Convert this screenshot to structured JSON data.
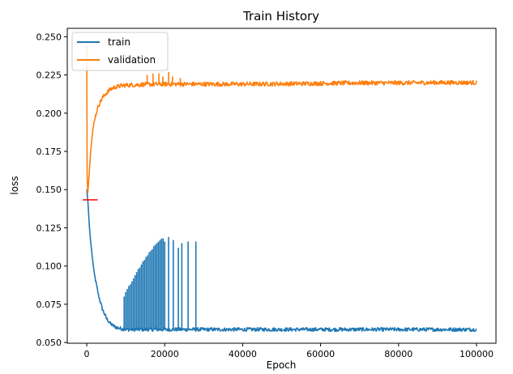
{
  "colors": {
    "train": "#1f77b4",
    "validation": "#ff7f0e",
    "marker": "#ff0000",
    "axis": "#000000",
    "background": "#ffffff"
  },
  "chart_data": {
    "type": "line",
    "title": "Train History",
    "xlabel": "Epoch",
    "ylabel": "loss",
    "xlim": [
      -5000,
      105000
    ],
    "ylim": [
      0.0495,
      0.2555
    ],
    "grid": false,
    "legend_placement": "top-left",
    "x_ticks": [
      0,
      20000,
      40000,
      60000,
      80000,
      100000
    ],
    "x_tick_labels": [
      "0",
      "20000",
      "40000",
      "60000",
      "80000",
      "100000"
    ],
    "y_ticks": [
      0.05,
      0.075,
      0.1,
      0.125,
      0.15,
      0.175,
      0.2,
      0.225,
      0.25
    ],
    "y_tick_labels": [
      "0.050",
      "0.075",
      "0.100",
      "0.125",
      "0.150",
      "0.175",
      "0.200",
      "0.225",
      "0.250"
    ],
    "series": [
      {
        "name": "train",
        "color": "#1f77b4",
        "x": [
          0,
          300,
          700,
          1000,
          1500,
          2000,
          3000,
          4000,
          5000,
          6000,
          7000,
          8000,
          9000,
          10000,
          15000,
          20000,
          30000,
          40000,
          50000,
          60000,
          70000,
          80000,
          90000,
          100000
        ],
        "values": [
          0.15,
          0.142,
          0.125,
          0.116,
          0.104,
          0.094,
          0.081,
          0.072,
          0.066,
          0.0625,
          0.0605,
          0.0595,
          0.059,
          0.0585,
          0.0585,
          0.0585,
          0.0585,
          0.0585,
          0.0585,
          0.0585,
          0.0585,
          0.0585,
          0.0585,
          0.0585
        ],
        "noise": 0.0012,
        "spikes": {
          "x": [
            9600,
            10000,
            10400,
            10800,
            11200,
            11600,
            12000,
            12400,
            12800,
            13200,
            13600,
            14000,
            14400,
            14800,
            15200,
            15600,
            16000,
            16400,
            16800,
            17200,
            17600,
            18000,
            18400,
            18800,
            19200,
            19600,
            20000,
            21000,
            22200,
            23500,
            24400,
            26000,
            28000
          ],
          "values": [
            0.08,
            0.083,
            0.085,
            0.087,
            0.088,
            0.09,
            0.092,
            0.094,
            0.096,
            0.098,
            0.099,
            0.101,
            0.103,
            0.104,
            0.106,
            0.107,
            0.109,
            0.11,
            0.111,
            0.113,
            0.114,
            0.115,
            0.116,
            0.117,
            0.118,
            0.118,
            0.116,
            0.119,
            0.117,
            0.112,
            0.115,
            0.116,
            0.116
          ]
        }
      },
      {
        "name": "validation",
        "color": "#ff7f0e",
        "x": [
          0,
          100,
          250,
          400,
          700,
          1000,
          1500,
          2000,
          3000,
          4000,
          5000,
          6000,
          7000,
          8000,
          9000,
          10000,
          12000,
          15000,
          20000,
          30000,
          40000,
          50000,
          60000,
          70000,
          80000,
          90000,
          100000
        ],
        "values": [
          0.244,
          0.16,
          0.148,
          0.152,
          0.163,
          0.175,
          0.188,
          0.196,
          0.205,
          0.21,
          0.213,
          0.2155,
          0.2168,
          0.2175,
          0.218,
          0.2183,
          0.2185,
          0.2188,
          0.219,
          0.219,
          0.219,
          0.2192,
          0.2195,
          0.2198,
          0.2198,
          0.22,
          0.22
        ],
        "noise": 0.0014,
        "spikes": {
          "x": [
            15500,
            17000,
            18500,
            19500,
            21000,
            22000,
            24000
          ],
          "values": [
            0.225,
            0.226,
            0.226,
            0.224,
            0.227,
            0.224,
            0.223
          ]
        }
      }
    ],
    "annotations": [
      {
        "type": "hline",
        "color": "#ff0000",
        "y": 0.1433,
        "x_range": [
          -1000,
          2800
        ]
      }
    ]
  }
}
